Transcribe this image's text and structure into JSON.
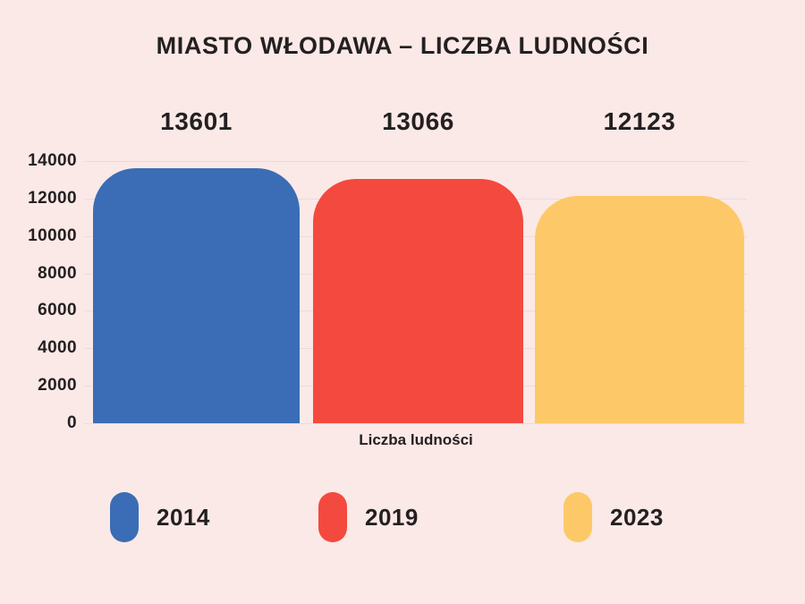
{
  "page": {
    "background": "#fbe9e7",
    "text_color": "#242021",
    "grid_color": "#eddbd9"
  },
  "chart_data": {
    "type": "bar",
    "title": "MIASTO WŁODAWA – LICZBA LUDNOŚCI",
    "xlabel": "Liczba ludności",
    "ylabel": "",
    "categories": [
      "2014",
      "2019",
      "2023"
    ],
    "values": [
      13601,
      13066,
      12123
    ],
    "value_labels": [
      "13601",
      "13066",
      "12123"
    ],
    "colors": [
      "#3a6db5",
      "#f4493e",
      "#fdc968"
    ],
    "ylim": [
      0,
      14000
    ],
    "ytick_values": [
      0,
      2000,
      4000,
      6000,
      8000,
      10000,
      12000,
      14000
    ],
    "ytick_labels": [
      "0",
      "2000",
      "4000",
      "6000",
      "8000",
      "10000",
      "12000",
      "14000"
    ],
    "grid": true,
    "legend_position": "bottom",
    "legend_entries": [
      "2014",
      "2019",
      "2023"
    ]
  }
}
